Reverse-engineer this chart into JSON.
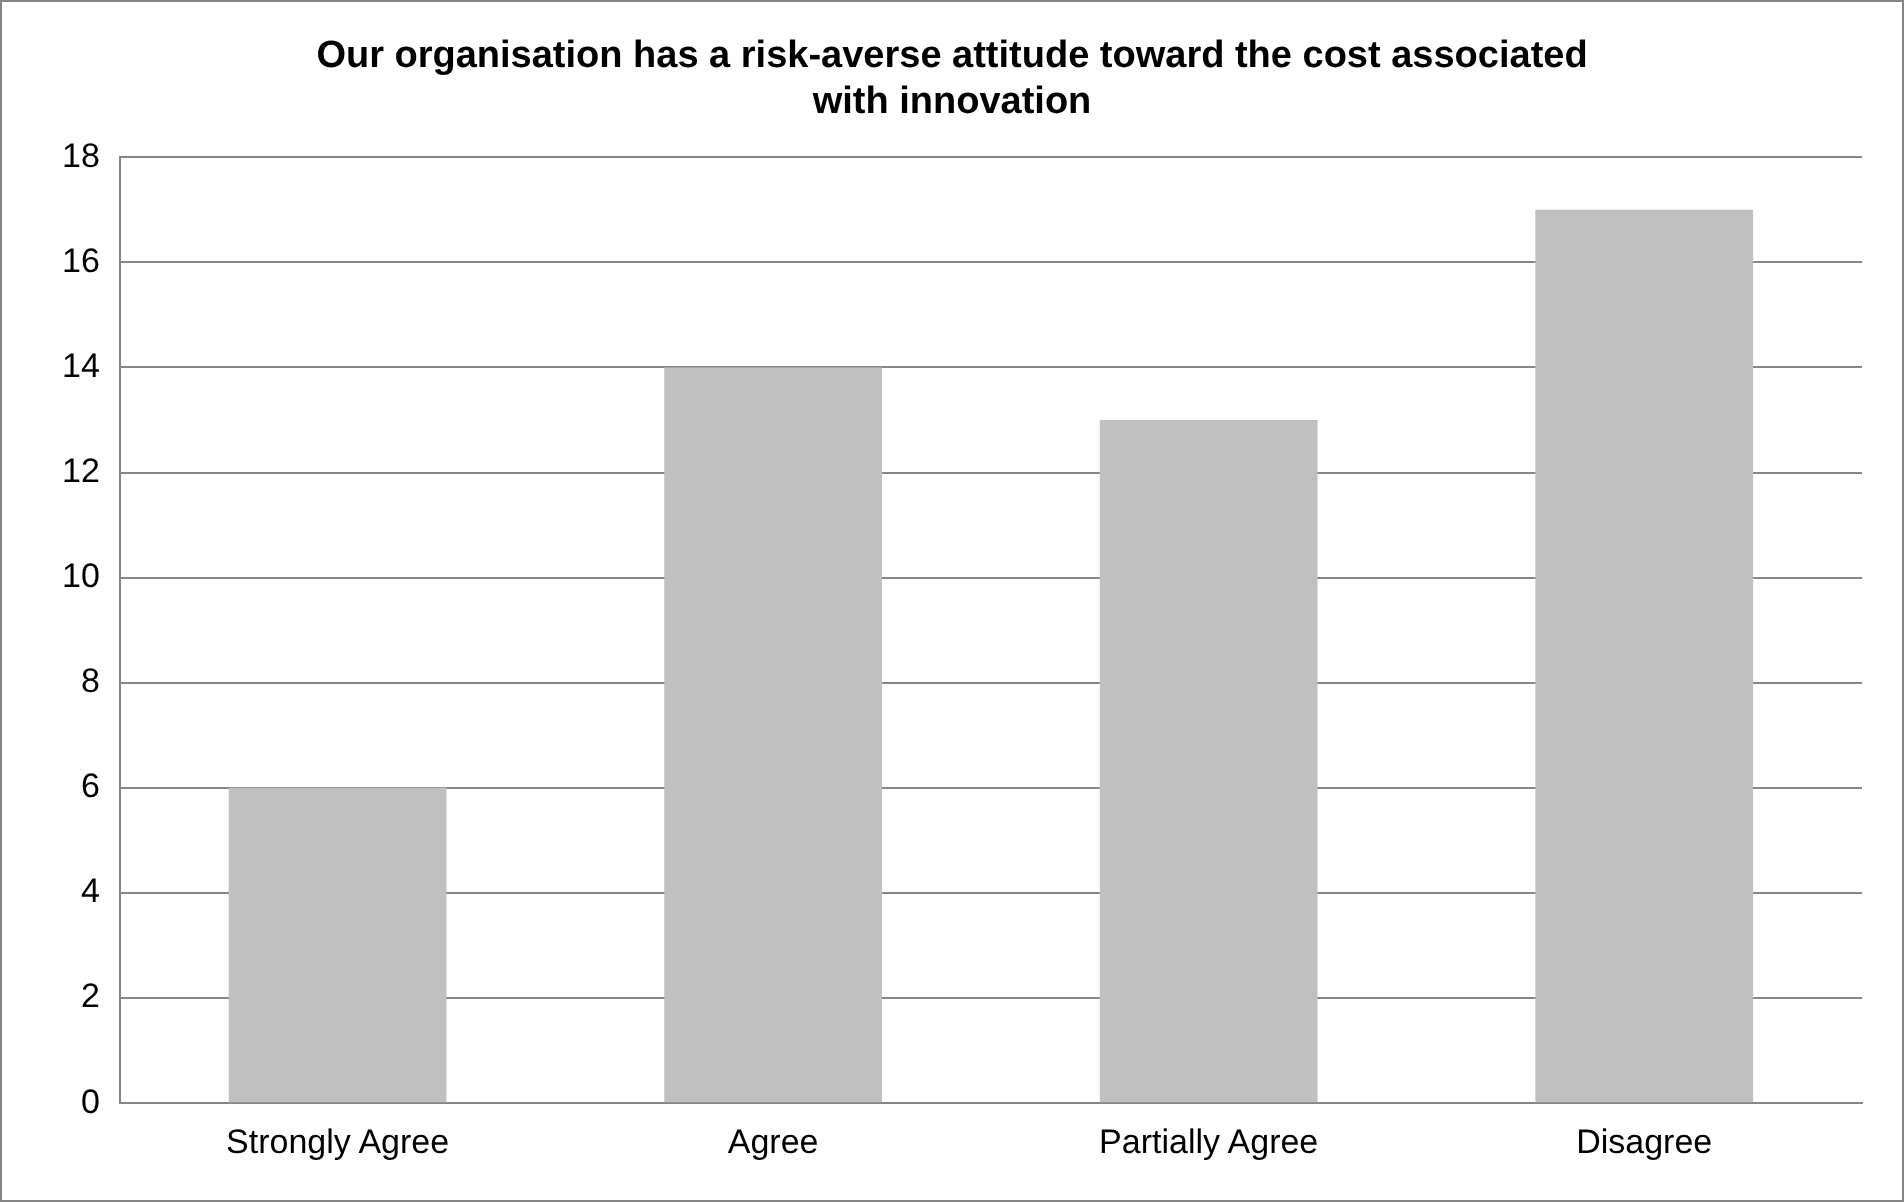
{
  "chart_data": {
    "type": "bar",
    "title": "Our organisation has a risk-averse attitude toward the cost associated with innovation",
    "categories": [
      "Strongly Agree",
      "Agree",
      "Partially Agree",
      "Disagree"
    ],
    "values": [
      6,
      14,
      13,
      17
    ],
    "color": "#c0c0c0",
    "ylim": [
      0,
      18
    ],
    "yticks": [
      0,
      2,
      4,
      6,
      8,
      10,
      12,
      14,
      16,
      18
    ],
    "grid": "y",
    "legend": false
  }
}
